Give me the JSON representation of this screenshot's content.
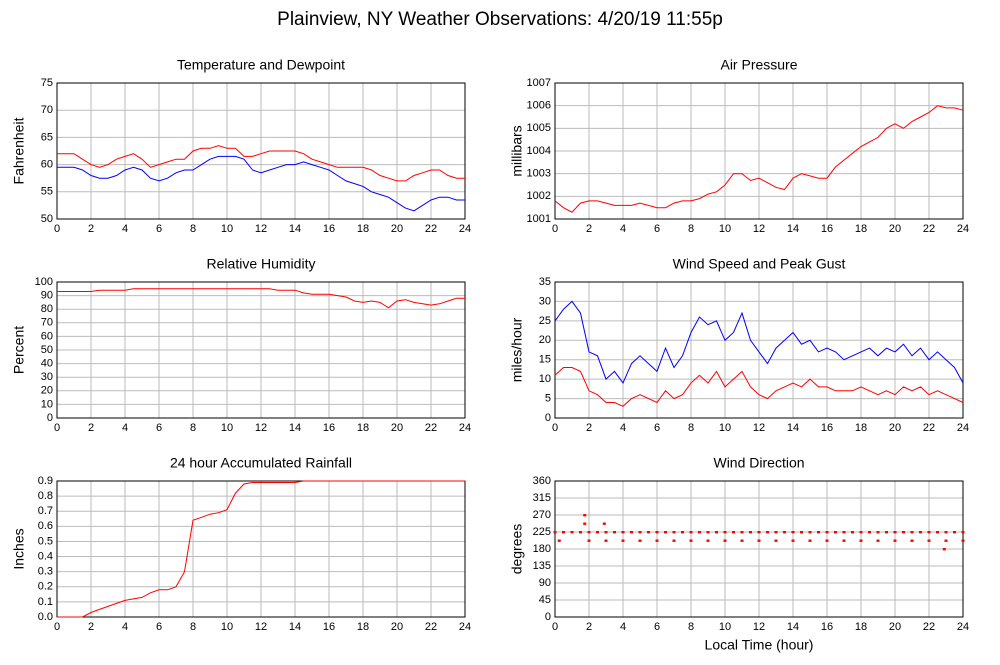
{
  "title": "Plainview, NY Weather Observations: 4/20/19 11:55p",
  "chart_data": [
    {
      "type": "line",
      "title": "Temperature and Dewpoint",
      "ylabel": "Fahrenheit",
      "x": [
        0,
        0.5,
        1,
        1.5,
        2,
        2.5,
        3,
        3.5,
        4,
        4.5,
        5,
        5.5,
        6,
        6.5,
        7,
        7.5,
        8,
        8.5,
        9,
        9.5,
        10,
        10.5,
        11,
        11.5,
        12,
        12.5,
        13,
        13.5,
        14,
        14.5,
        15,
        15.5,
        16,
        16.5,
        17,
        17.5,
        18,
        18.5,
        19,
        19.5,
        20,
        20.5,
        21,
        21.5,
        22,
        22.5,
        23,
        23.5,
        24
      ],
      "series": [
        {
          "color": "#ff0000",
          "values": [
            62,
            62,
            62,
            61,
            60,
            59.5,
            60,
            61,
            61.5,
            62,
            61,
            59.5,
            60,
            60.5,
            61,
            61,
            62.5,
            63,
            63,
            63.5,
            63,
            63,
            61.5,
            61.5,
            62,
            62.5,
            62.5,
            62.5,
            62.5,
            62,
            61,
            60.5,
            60,
            59.5,
            59.5,
            59.5,
            59.5,
            59,
            58,
            57.5,
            57,
            57,
            58,
            58.5,
            59,
            59,
            58,
            57.5,
            57.5
          ]
        },
        {
          "color": "#0000ff",
          "values": [
            59.5,
            59.5,
            59.5,
            59,
            58,
            57.5,
            57.5,
            58,
            59,
            59.5,
            59,
            57.5,
            57,
            57.5,
            58.5,
            59,
            59,
            60,
            61,
            61.5,
            61.5,
            61.5,
            61,
            59,
            58.5,
            59,
            59.5,
            60,
            60,
            60.5,
            60,
            59.5,
            59,
            58,
            57,
            56.5,
            56,
            55,
            54.5,
            54,
            53,
            52,
            51.5,
            52.5,
            53.5,
            54,
            54,
            53.5,
            53.5
          ]
        }
      ],
      "xlim": [
        0,
        24
      ],
      "xticks": [
        0,
        2,
        4,
        6,
        8,
        10,
        12,
        14,
        16,
        18,
        20,
        22,
        24
      ],
      "ylim": [
        50,
        75
      ],
      "yticks": [
        50,
        55,
        60,
        65,
        70,
        75
      ],
      "grid": true
    },
    {
      "type": "line",
      "title": "Air Pressure",
      "ylabel": "millibars",
      "x": [
        0,
        0.5,
        1,
        1.5,
        2,
        2.5,
        3,
        3.5,
        4,
        4.5,
        5,
        5.5,
        6,
        6.5,
        7,
        7.5,
        8,
        8.5,
        9,
        9.5,
        10,
        10.5,
        11,
        11.5,
        12,
        12.5,
        13,
        13.5,
        14,
        14.5,
        15,
        15.5,
        16,
        16.5,
        17,
        17.5,
        18,
        18.5,
        19,
        19.5,
        20,
        20.5,
        21,
        21.5,
        22,
        22.5,
        23,
        23.5,
        24
      ],
      "series": [
        {
          "color": "#ff0000",
          "values": [
            1001.8,
            1001.5,
            1001.3,
            1001.7,
            1001.8,
            1001.8,
            1001.7,
            1001.6,
            1001.6,
            1001.6,
            1001.7,
            1001.6,
            1001.5,
            1001.5,
            1001.7,
            1001.8,
            1001.8,
            1001.9,
            1002.1,
            1002.2,
            1002.5,
            1003.0,
            1003.0,
            1002.7,
            1002.8,
            1002.6,
            1002.4,
            1002.3,
            1002.8,
            1003.0,
            1002.9,
            1002.8,
            1002.8,
            1003.3,
            1003.6,
            1003.9,
            1004.2,
            1004.4,
            1004.6,
            1005.0,
            1005.2,
            1005.0,
            1005.3,
            1005.5,
            1005.7,
            1006.0,
            1005.9,
            1005.9,
            1005.8
          ]
        }
      ],
      "xlim": [
        0,
        24
      ],
      "xticks": [
        0,
        2,
        4,
        6,
        8,
        10,
        12,
        14,
        16,
        18,
        20,
        22,
        24
      ],
      "ylim": [
        1001,
        1007
      ],
      "yticks": [
        1001,
        1002,
        1003,
        1004,
        1005,
        1006,
        1007
      ],
      "grid": true
    },
    {
      "type": "line",
      "title": "Relative Humidity",
      "ylabel": "Percent",
      "x": [
        0,
        0.5,
        1,
        1.5,
        2,
        2.5,
        3,
        3.5,
        4,
        4.5,
        5,
        5.5,
        6,
        6.5,
        7,
        7.5,
        8,
        8.5,
        9,
        9.5,
        10,
        10.5,
        11,
        11.5,
        12,
        12.5,
        13,
        13.5,
        14,
        14.5,
        15,
        15.5,
        16,
        16.5,
        17,
        17.5,
        18,
        18.5,
        19,
        19.5,
        20,
        20.5,
        21,
        21.5,
        22,
        22.5,
        23,
        23.5,
        24
      ],
      "series": [
        {
          "color": "#ff0000",
          "values": [
            93,
            93,
            93,
            93,
            93,
            94,
            94,
            94,
            94,
            95,
            95,
            95,
            95,
            95,
            95,
            95,
            95,
            95,
            95,
            95,
            95,
            95,
            95,
            95,
            95,
            95,
            94,
            94,
            94,
            92,
            91,
            91,
            91,
            90,
            89,
            86,
            85,
            86,
            85,
            81,
            86,
            87,
            85,
            84,
            83,
            84,
            86,
            88,
            88
          ]
        }
      ],
      "xlim": [
        0,
        24
      ],
      "xticks": [
        0,
        2,
        4,
        6,
        8,
        10,
        12,
        14,
        16,
        18,
        20,
        22,
        24
      ],
      "ylim": [
        0,
        100
      ],
      "yticks": [
        0,
        10,
        20,
        30,
        40,
        50,
        60,
        70,
        80,
        90,
        100
      ],
      "grid": true
    },
    {
      "type": "line",
      "title": "Wind Speed and Peak Gust",
      "ylabel": "miles/hour",
      "x": [
        0,
        0.5,
        1,
        1.5,
        2,
        2.5,
        3,
        3.5,
        4,
        4.5,
        5,
        5.5,
        6,
        6.5,
        7,
        7.5,
        8,
        8.5,
        9,
        9.5,
        10,
        10.5,
        11,
        11.5,
        12,
        12.5,
        13,
        13.5,
        14,
        14.5,
        15,
        15.5,
        16,
        16.5,
        17,
        17.5,
        18,
        18.5,
        19,
        19.5,
        20,
        20.5,
        21,
        21.5,
        22,
        22.5,
        23,
        23.5,
        24
      ],
      "series": [
        {
          "color": "#0000ff",
          "values": [
            25,
            28,
            30,
            27,
            17,
            16,
            10,
            12,
            9,
            14,
            16,
            14,
            12,
            18,
            13,
            16,
            22,
            26,
            24,
            25,
            20,
            22,
            27,
            20,
            17,
            14,
            18,
            20,
            22,
            19,
            20,
            17,
            18,
            17,
            15,
            16,
            17,
            18,
            16,
            18,
            17,
            19,
            16,
            18,
            15,
            17,
            15,
            13,
            9
          ]
        },
        {
          "color": "#ff0000",
          "values": [
            11,
            13,
            13,
            12,
            7,
            6,
            4,
            4,
            3,
            5,
            6,
            5,
            4,
            7,
            5,
            6,
            9,
            11,
            9,
            12,
            8,
            10,
            12,
            8,
            6,
            5,
            7,
            8,
            9,
            8,
            10,
            8,
            8,
            7,
            7,
            7,
            8,
            7,
            6,
            7,
            6,
            8,
            7,
            8,
            6,
            7,
            6,
            5,
            4
          ]
        }
      ],
      "xlim": [
        0,
        24
      ],
      "xticks": [
        0,
        2,
        4,
        6,
        8,
        10,
        12,
        14,
        16,
        18,
        20,
        22,
        24
      ],
      "ylim": [
        0,
        35
      ],
      "yticks": [
        0,
        5,
        10,
        15,
        20,
        25,
        30,
        35
      ],
      "grid": true
    },
    {
      "type": "line",
      "title": "24 hour Accumulated Rainfall",
      "ylabel": "Inches",
      "x": [
        0,
        0.5,
        1,
        1.5,
        2,
        2.5,
        3,
        3.5,
        4,
        4.5,
        5,
        5.5,
        6,
        6.5,
        7,
        7.5,
        8,
        8.5,
        9,
        9.5,
        10,
        10.5,
        11,
        11.5,
        12,
        12.5,
        13,
        13.5,
        14,
        14.5,
        15,
        15.5,
        16,
        16.5,
        17,
        17.5,
        18,
        18.5,
        19,
        19.5,
        20,
        20.5,
        21,
        21.5,
        22,
        22.5,
        23,
        23.5,
        24
      ],
      "series": [
        {
          "color": "#ff0000",
          "values": [
            0,
            0,
            0,
            0,
            0.03,
            0.05,
            0.07,
            0.09,
            0.11,
            0.12,
            0.13,
            0.16,
            0.18,
            0.18,
            0.2,
            0.3,
            0.64,
            0.66,
            0.68,
            0.69,
            0.71,
            0.82,
            0.88,
            0.89,
            0.89,
            0.89,
            0.89,
            0.89,
            0.89,
            0.9,
            0.9,
            0.9,
            0.9,
            0.9,
            0.9,
            0.9,
            0.9,
            0.9,
            0.9,
            0.9,
            0.9,
            0.9,
            0.9,
            0.9,
            0.9,
            0.9,
            0.9,
            0.9,
            0.9
          ]
        }
      ],
      "xlim": [
        0,
        24
      ],
      "xticks": [
        0,
        2,
        4,
        6,
        8,
        10,
        12,
        14,
        16,
        18,
        20,
        22,
        24
      ],
      "ylim": [
        0,
        0.9
      ],
      "yticks": [
        {
          "value": 0,
          "label": "0.0"
        },
        0.1,
        0.2,
        0.3,
        0.4,
        0.5,
        0.6,
        0.7,
        0.8,
        0.9
      ],
      "grid": true
    },
    {
      "type": "scatter",
      "title": "Wind Direction",
      "ylabel": "degrees",
      "xlabel": "Local Time (hour)",
      "x": [
        0,
        0.5,
        1,
        1.5,
        2,
        2.5,
        3,
        3.5,
        4,
        4.5,
        5,
        5.5,
        6,
        6.5,
        7,
        7.5,
        8,
        8.5,
        9,
        9.5,
        10,
        10.5,
        11,
        11.5,
        12,
        12.5,
        13,
        13.5,
        14,
        14.5,
        15,
        15.5,
        16,
        16.5,
        17,
        17.5,
        18,
        18.5,
        19,
        19.5,
        20,
        20.5,
        21,
        21.5,
        22,
        22.5,
        23,
        23.5,
        24,
        0.25,
        2,
        3,
        4,
        5,
        6,
        7,
        8,
        9,
        10,
        11,
        12,
        13,
        14,
        15,
        16,
        17,
        18,
        19,
        20,
        21,
        22,
        23,
        24,
        1.75,
        1.75,
        2.9,
        22.9
      ],
      "series": [
        {
          "color": "#ff0000",
          "values": [
            225,
            225,
            225,
            225,
            225,
            225,
            225,
            225,
            225,
            225,
            225,
            225,
            225,
            225,
            225,
            225,
            225,
            225,
            225,
            225,
            225,
            225,
            225,
            225,
            225,
            225,
            225,
            225,
            225,
            225,
            225,
            225,
            225,
            225,
            225,
            225,
            225,
            225,
            225,
            225,
            225,
            225,
            225,
            225,
            225,
            225,
            225,
            225,
            225,
            202.5,
            202.5,
            202.5,
            202.5,
            202.5,
            202.5,
            202.5,
            202.5,
            202.5,
            202.5,
            202.5,
            202.5,
            202.5,
            202.5,
            202.5,
            202.5,
            202.5,
            202.5,
            202.5,
            202.5,
            202.5,
            202.5,
            202.5,
            202.5,
            270,
            247.5,
            247.5,
            180
          ]
        }
      ],
      "xlim": [
        0,
        24
      ],
      "xticks": [
        0,
        2,
        4,
        6,
        8,
        10,
        12,
        14,
        16,
        18,
        20,
        22,
        24
      ],
      "ylim": [
        0,
        360
      ],
      "yticks": [
        0,
        45,
        90,
        135,
        180,
        225,
        270,
        315,
        360
      ],
      "grid": true
    }
  ]
}
